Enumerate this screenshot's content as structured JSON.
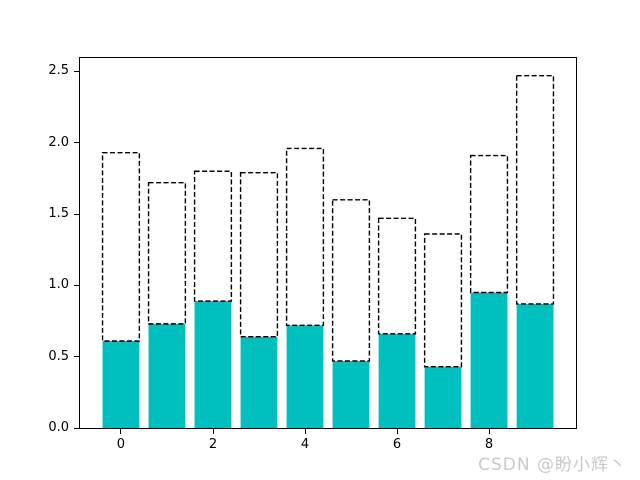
{
  "figure": {
    "background": "#ffffff",
    "watermark": "CSDN @盼小辉丶",
    "watermark_color": "#c9c9c9"
  },
  "chart_data": {
    "type": "bar",
    "title": "",
    "xlabel": "",
    "ylabel": "",
    "x": [
      0,
      1,
      2,
      3,
      4,
      5,
      6,
      7,
      8,
      9
    ],
    "series": [
      {
        "name": "bottom-bars-solid-fill",
        "color": "#00bfbf",
        "edge": "none",
        "values": [
          0.61,
          0.73,
          0.89,
          0.64,
          0.72,
          0.47,
          0.66,
          0.43,
          0.95,
          0.87
        ]
      },
      {
        "name": "top-bars-dashed-outline",
        "color": "#ffffff",
        "edgecolor": "#000000",
        "edge_style": "dashed",
        "stacked_on": "bottom-bars-solid-fill",
        "values": [
          1.32,
          0.99,
          0.91,
          1.15,
          1.24,
          1.13,
          0.81,
          0.93,
          0.96,
          1.6
        ]
      }
    ],
    "stacked_totals": [
      1.93,
      1.72,
      1.8,
      1.79,
      1.96,
      1.6,
      1.47,
      1.36,
      1.91,
      2.47
    ],
    "bar_width": 0.8,
    "xticks": [
      0,
      2,
      4,
      6,
      8
    ],
    "yticks": [
      0.0,
      0.5,
      1.0,
      1.5,
      2.0,
      2.5
    ],
    "xlim": [
      -0.89,
      9.89
    ],
    "ylim": [
      0,
      2.594
    ],
    "grid": false,
    "legend": null
  }
}
